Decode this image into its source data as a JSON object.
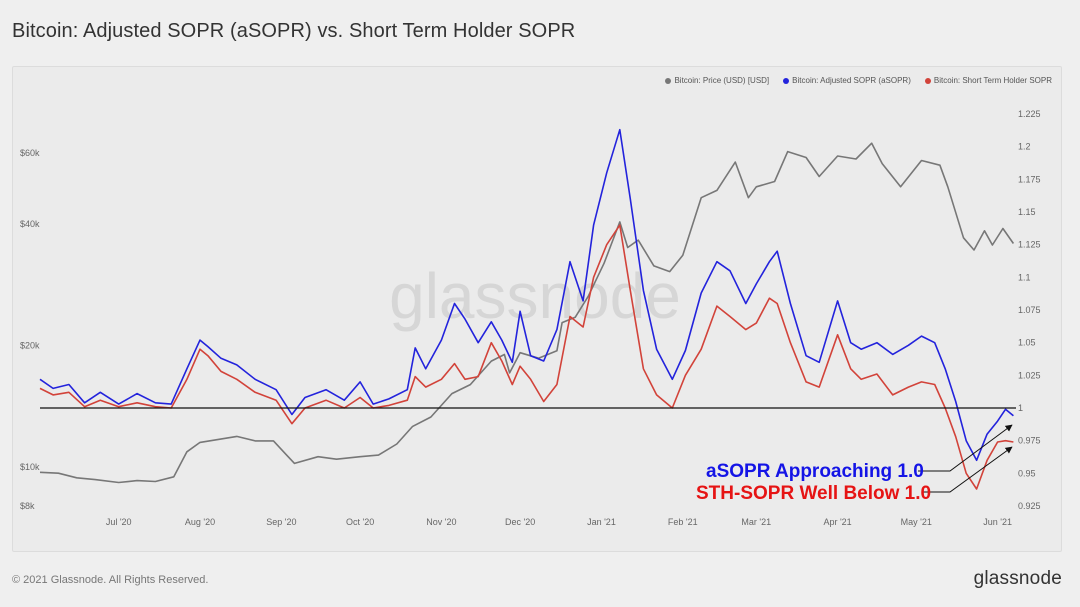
{
  "page": {
    "title": "Bitcoin: Adjusted SOPR (aSOPR) vs. Short Term Holder SOPR",
    "footer_copyright": "© 2021 Glassnode. All Rights Reserved.",
    "footer_logo": "glassnode",
    "watermark": "glassnode"
  },
  "colors": {
    "price": "#777777",
    "asopr": "#2323dc",
    "sth": "#d2433a",
    "baseline": "#111111",
    "anno_blue": "#1414e6",
    "anno_red": "#e61414"
  },
  "legend": [
    {
      "label": "Bitcoin: Price (USD) [USD]",
      "color": "#777777"
    },
    {
      "label": "Bitcoin: Adjusted SOPR (aSOPR)",
      "color": "#2323dc"
    },
    {
      "label": "Bitcoin: Short Term Holder SOPR",
      "color": "#d2433a"
    }
  ],
  "annotations": [
    {
      "text": "aSOPR Approaching 1.0",
      "color": "#1414e6"
    },
    {
      "text": "STH-SOPR Well Below 1.0",
      "color": "#e61414"
    }
  ],
  "chart_data": {
    "type": "line",
    "title": "Bitcoin: Adjusted SOPR (aSOPR) vs. Short Term Holder SOPR",
    "x_axis": {
      "type": "date",
      "range": [
        "2020-06-01",
        "2021-06-08"
      ],
      "ticks": [
        {
          "date": "2020-07-01",
          "label": "Jul '20"
        },
        {
          "date": "2020-08-01",
          "label": "Aug '20"
        },
        {
          "date": "2020-09-01",
          "label": "Sep '20"
        },
        {
          "date": "2020-10-01",
          "label": "Oct '20"
        },
        {
          "date": "2020-11-01",
          "label": "Nov '20"
        },
        {
          "date": "2020-12-01",
          "label": "Dec '20"
        },
        {
          "date": "2021-01-01",
          "label": "Jan '21"
        },
        {
          "date": "2021-02-01",
          "label": "Feb '21"
        },
        {
          "date": "2021-03-01",
          "label": "Mar '21"
        },
        {
          "date": "2021-04-01",
          "label": "Apr '21"
        },
        {
          "date": "2021-05-01",
          "label": "May '21"
        },
        {
          "date": "2021-06-01",
          "label": "Jun '21"
        }
      ]
    },
    "y_left": {
      "scale": "log",
      "range": [
        8000,
        75000
      ],
      "ticks": [
        {
          "value": 8000,
          "label": "$8k"
        },
        {
          "value": 10000,
          "label": "$10k"
        },
        {
          "value": 20000,
          "label": "$20k"
        },
        {
          "value": 40000,
          "label": "$40k"
        },
        {
          "value": 60000,
          "label": "$60k"
        }
      ]
    },
    "y_right": {
      "scale": "linear",
      "range": [
        0.925,
        1.225
      ],
      "ticks": [
        0.925,
        0.95,
        0.975,
        1,
        1.025,
        1.05,
        1.075,
        1.1,
        1.125,
        1.15,
        1.175,
        1.2,
        1.225
      ],
      "tick_labels": [
        "0.925",
        "0.95",
        "0.975",
        "1",
        "1.025",
        "1.05",
        "1.075",
        "1.1",
        "1.125",
        "1.15",
        "1.175",
        "1.2",
        "1.225"
      ]
    },
    "reference_line": {
      "axis": "right",
      "value": 1.0
    },
    "grid": false,
    "legend_position": "top-right",
    "series": [
      {
        "name": "Bitcoin: Price (USD) [USD]",
        "axis": "left",
        "points": [
          [
            "2020-06-01",
            9700
          ],
          [
            "2020-06-08",
            9650
          ],
          [
            "2020-06-15",
            9400
          ],
          [
            "2020-06-22",
            9300
          ],
          [
            "2020-07-01",
            9150
          ],
          [
            "2020-07-08",
            9250
          ],
          [
            "2020-07-15",
            9200
          ],
          [
            "2020-07-22",
            9450
          ],
          [
            "2020-07-27",
            10900
          ],
          [
            "2020-08-01",
            11500
          ],
          [
            "2020-08-08",
            11700
          ],
          [
            "2020-08-15",
            11900
          ],
          [
            "2020-08-22",
            11600
          ],
          [
            "2020-08-29",
            11600
          ],
          [
            "2020-09-03",
            10700
          ],
          [
            "2020-09-06",
            10200
          ],
          [
            "2020-09-15",
            10600
          ],
          [
            "2020-09-22",
            10450
          ],
          [
            "2020-10-01",
            10600
          ],
          [
            "2020-10-08",
            10700
          ],
          [
            "2020-10-15",
            11400
          ],
          [
            "2020-10-21",
            12600
          ],
          [
            "2020-10-28",
            13300
          ],
          [
            "2020-11-05",
            15200
          ],
          [
            "2020-11-12",
            16000
          ],
          [
            "2020-11-20",
            18300
          ],
          [
            "2020-11-25",
            19000
          ],
          [
            "2020-11-27",
            17100
          ],
          [
            "2020-12-01",
            19200
          ],
          [
            "2020-12-08",
            18600
          ],
          [
            "2020-12-15",
            19400
          ],
          [
            "2020-12-17",
            22800
          ],
          [
            "2020-12-22",
            23500
          ],
          [
            "2020-12-27",
            26500
          ],
          [
            "2021-01-02",
            32000
          ],
          [
            "2021-01-08",
            40500
          ],
          [
            "2021-01-11",
            35000
          ],
          [
            "2021-01-15",
            36500
          ],
          [
            "2021-01-21",
            31500
          ],
          [
            "2021-01-27",
            30500
          ],
          [
            "2021-02-01",
            33500
          ],
          [
            "2021-02-08",
            46500
          ],
          [
            "2021-02-14",
            48500
          ],
          [
            "2021-02-21",
            57000
          ],
          [
            "2021-02-26",
            46500
          ],
          [
            "2021-03-01",
            49500
          ],
          [
            "2021-03-08",
            51000
          ],
          [
            "2021-03-13",
            60500
          ],
          [
            "2021-03-20",
            58500
          ],
          [
            "2021-03-25",
            52500
          ],
          [
            "2021-04-01",
            59000
          ],
          [
            "2021-04-08",
            58000
          ],
          [
            "2021-04-14",
            63500
          ],
          [
            "2021-04-18",
            56500
          ],
          [
            "2021-04-25",
            49500
          ],
          [
            "2021-05-03",
            57500
          ],
          [
            "2021-05-10",
            56000
          ],
          [
            "2021-05-13",
            49500
          ],
          [
            "2021-05-19",
            37000
          ],
          [
            "2021-05-23",
            34500
          ],
          [
            "2021-05-27",
            38500
          ],
          [
            "2021-05-30",
            35500
          ],
          [
            "2021-06-03",
            39000
          ],
          [
            "2021-06-07",
            35800
          ]
        ]
      },
      {
        "name": "Bitcoin: Adjusted SOPR (aSOPR)",
        "axis": "right",
        "points": [
          [
            "2020-06-01",
            1.022
          ],
          [
            "2020-06-06",
            1.015
          ],
          [
            "2020-06-12",
            1.018
          ],
          [
            "2020-06-18",
            1.004
          ],
          [
            "2020-06-24",
            1.012
          ],
          [
            "2020-07-01",
            1.003
          ],
          [
            "2020-07-08",
            1.011
          ],
          [
            "2020-07-15",
            1.004
          ],
          [
            "2020-07-21",
            1.003
          ],
          [
            "2020-07-27",
            1.03
          ],
          [
            "2020-08-01",
            1.052
          ],
          [
            "2020-08-04",
            1.047
          ],
          [
            "2020-08-09",
            1.038
          ],
          [
            "2020-08-15",
            1.033
          ],
          [
            "2020-08-22",
            1.022
          ],
          [
            "2020-08-30",
            1.014
          ],
          [
            "2020-09-05",
            0.995
          ],
          [
            "2020-09-10",
            1.008
          ],
          [
            "2020-09-18",
            1.014
          ],
          [
            "2020-09-25",
            1.006
          ],
          [
            "2020-10-01",
            1.02
          ],
          [
            "2020-10-06",
            1.003
          ],
          [
            "2020-10-12",
            1.007
          ],
          [
            "2020-10-19",
            1.014
          ],
          [
            "2020-10-22",
            1.046
          ],
          [
            "2020-10-26",
            1.03
          ],
          [
            "2020-11-01",
            1.052
          ],
          [
            "2020-11-06",
            1.08
          ],
          [
            "2020-11-10",
            1.068
          ],
          [
            "2020-11-15",
            1.05
          ],
          [
            "2020-11-20",
            1.066
          ],
          [
            "2020-11-24",
            1.052
          ],
          [
            "2020-11-28",
            1.035
          ],
          [
            "2020-12-01",
            1.074
          ],
          [
            "2020-12-05",
            1.04
          ],
          [
            "2020-12-10",
            1.036
          ],
          [
            "2020-12-15",
            1.06
          ],
          [
            "2020-12-20",
            1.112
          ],
          [
            "2020-12-25",
            1.082
          ],
          [
            "2020-12-29",
            1.14
          ],
          [
            "2021-01-03",
            1.18
          ],
          [
            "2021-01-08",
            1.213
          ],
          [
            "2021-01-12",
            1.16
          ],
          [
            "2021-01-17",
            1.09
          ],
          [
            "2021-01-22",
            1.045
          ],
          [
            "2021-01-28",
            1.022
          ],
          [
            "2021-02-02",
            1.044
          ],
          [
            "2021-02-08",
            1.088
          ],
          [
            "2021-02-14",
            1.112
          ],
          [
            "2021-02-19",
            1.105
          ],
          [
            "2021-02-25",
            1.08
          ],
          [
            "2021-03-01",
            1.095
          ],
          [
            "2021-03-06",
            1.112
          ],
          [
            "2021-03-09",
            1.12
          ],
          [
            "2021-03-14",
            1.08
          ],
          [
            "2021-03-20",
            1.04
          ],
          [
            "2021-03-25",
            1.035
          ],
          [
            "2021-04-01",
            1.082
          ],
          [
            "2021-04-06",
            1.05
          ],
          [
            "2021-04-10",
            1.045
          ],
          [
            "2021-04-16",
            1.05
          ],
          [
            "2021-04-22",
            1.041
          ],
          [
            "2021-04-28",
            1.048
          ],
          [
            "2021-05-03",
            1.055
          ],
          [
            "2021-05-08",
            1.05
          ],
          [
            "2021-05-12",
            1.03
          ],
          [
            "2021-05-16",
            1.005
          ],
          [
            "2021-05-20",
            0.975
          ],
          [
            "2021-05-24",
            0.96
          ],
          [
            "2021-05-28",
            0.98
          ],
          [
            "2021-06-01",
            0.99
          ],
          [
            "2021-06-04",
            0.999
          ],
          [
            "2021-06-07",
            0.994
          ]
        ]
      },
      {
        "name": "Bitcoin: Short Term Holder SOPR",
        "axis": "right",
        "points": [
          [
            "2020-06-01",
            1.015
          ],
          [
            "2020-06-06",
            1.01
          ],
          [
            "2020-06-12",
            1.012
          ],
          [
            "2020-06-18",
            1.001
          ],
          [
            "2020-06-24",
            1.006
          ],
          [
            "2020-07-01",
            1.001
          ],
          [
            "2020-07-08",
            1.004
          ],
          [
            "2020-07-15",
            1.001
          ],
          [
            "2020-07-21",
            1.0
          ],
          [
            "2020-07-27",
            1.022
          ],
          [
            "2020-08-01",
            1.045
          ],
          [
            "2020-08-04",
            1.04
          ],
          [
            "2020-08-09",
            1.028
          ],
          [
            "2020-08-15",
            1.022
          ],
          [
            "2020-08-22",
            1.012
          ],
          [
            "2020-08-30",
            1.006
          ],
          [
            "2020-09-05",
            0.988
          ],
          [
            "2020-09-10",
            1.0
          ],
          [
            "2020-09-18",
            1.006
          ],
          [
            "2020-09-25",
            1.0
          ],
          [
            "2020-10-01",
            1.008
          ],
          [
            "2020-10-06",
            1.0
          ],
          [
            "2020-10-12",
            1.002
          ],
          [
            "2020-10-19",
            1.006
          ],
          [
            "2020-10-22",
            1.024
          ],
          [
            "2020-10-26",
            1.016
          ],
          [
            "2020-11-01",
            1.022
          ],
          [
            "2020-11-06",
            1.034
          ],
          [
            "2020-11-10",
            1.022
          ],
          [
            "2020-11-15",
            1.024
          ],
          [
            "2020-11-20",
            1.05
          ],
          [
            "2020-11-24",
            1.036
          ],
          [
            "2020-11-28",
            1.018
          ],
          [
            "2020-12-01",
            1.032
          ],
          [
            "2020-12-05",
            1.022
          ],
          [
            "2020-12-10",
            1.005
          ],
          [
            "2020-12-15",
            1.018
          ],
          [
            "2020-12-20",
            1.07
          ],
          [
            "2020-12-25",
            1.062
          ],
          [
            "2020-12-29",
            1.1
          ],
          [
            "2021-01-03",
            1.125
          ],
          [
            "2021-01-08",
            1.14
          ],
          [
            "2021-01-12",
            1.09
          ],
          [
            "2021-01-17",
            1.03
          ],
          [
            "2021-01-22",
            1.01
          ],
          [
            "2021-01-28",
            1.0
          ],
          [
            "2021-02-02",
            1.025
          ],
          [
            "2021-02-08",
            1.045
          ],
          [
            "2021-02-14",
            1.078
          ],
          [
            "2021-02-19",
            1.07
          ],
          [
            "2021-02-25",
            1.06
          ],
          [
            "2021-03-01",
            1.065
          ],
          [
            "2021-03-06",
            1.084
          ],
          [
            "2021-03-09",
            1.08
          ],
          [
            "2021-03-14",
            1.05
          ],
          [
            "2021-03-20",
            1.02
          ],
          [
            "2021-03-25",
            1.016
          ],
          [
            "2021-04-01",
            1.056
          ],
          [
            "2021-04-06",
            1.03
          ],
          [
            "2021-04-10",
            1.022
          ],
          [
            "2021-04-16",
            1.026
          ],
          [
            "2021-04-22",
            1.01
          ],
          [
            "2021-04-28",
            1.016
          ],
          [
            "2021-05-03",
            1.02
          ],
          [
            "2021-05-08",
            1.018
          ],
          [
            "2021-05-12",
            1.0
          ],
          [
            "2021-05-16",
            0.978
          ],
          [
            "2021-05-20",
            0.95
          ],
          [
            "2021-05-24",
            0.938
          ],
          [
            "2021-05-28",
            0.96
          ],
          [
            "2021-06-01",
            0.974
          ],
          [
            "2021-06-04",
            0.975
          ],
          [
            "2021-06-07",
            0.974
          ]
        ]
      }
    ]
  }
}
